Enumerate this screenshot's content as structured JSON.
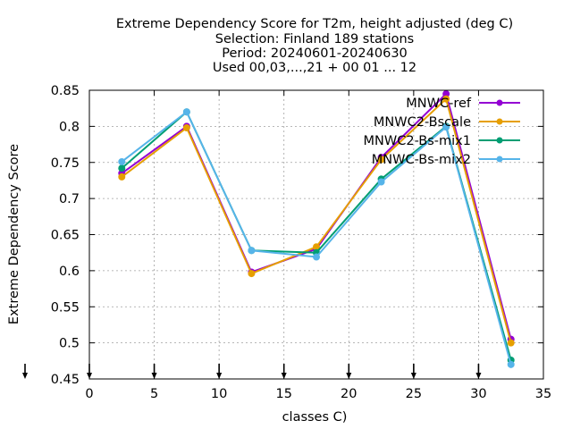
{
  "chart_data": {
    "type": "line",
    "title_lines": [
      "Extreme Dependency Score  for T2m, height adjusted (deg C)",
      "Selection: Finland    189 stations",
      "Period: 20240601-20240630",
      "Used 00,03,...,21 + 00 01 ... 12"
    ],
    "xlabel": "classes C)",
    "ylabel": "Extreme Dependency Score",
    "xlim": [
      0,
      35
    ],
    "ylim": [
      0.45,
      0.85
    ],
    "x_ticks": [
      0,
      5,
      10,
      15,
      20,
      25,
      30,
      35
    ],
    "y_ticks": [
      0.45,
      0.5,
      0.55,
      0.6,
      0.65,
      0.7,
      0.75,
      0.8,
      0.85
    ],
    "y_tick_labels": [
      "0.45",
      "0.5",
      "0.55",
      "0.6",
      "0.65",
      "0.7",
      "0.75",
      "0.8",
      "0.85"
    ],
    "grid": true,
    "legend_position": "top-right",
    "x": [
      2.5,
      7.5,
      12.5,
      17.5,
      22.5,
      27.5,
      32.5
    ],
    "class_markers_x": [
      0,
      5,
      10,
      15,
      20,
      25,
      30
    ],
    "series": [
      {
        "name": "MNWC-ref",
        "color": "#9400d3",
        "marker": "circle",
        "values": [
          0.735,
          0.8,
          0.598,
          0.63,
          0.757,
          0.845,
          0.505
        ]
      },
      {
        "name": "MNWC2-Bscale",
        "color": "#e69f00",
        "marker": "circle",
        "values": [
          0.73,
          0.798,
          0.596,
          0.633,
          0.754,
          0.838,
          0.5
        ]
      },
      {
        "name": "MNWC2-Bs-mix1",
        "color": "#009e73",
        "marker": "circle",
        "values": [
          0.742,
          0.82,
          0.628,
          0.625,
          0.727,
          0.8,
          0.476
        ]
      },
      {
        "name": "MNWC-Bs-mix2",
        "color": "#56b4e9",
        "marker": "circle",
        "values": [
          0.751,
          0.82,
          0.628,
          0.619,
          0.723,
          0.799,
          0.47
        ]
      }
    ]
  }
}
